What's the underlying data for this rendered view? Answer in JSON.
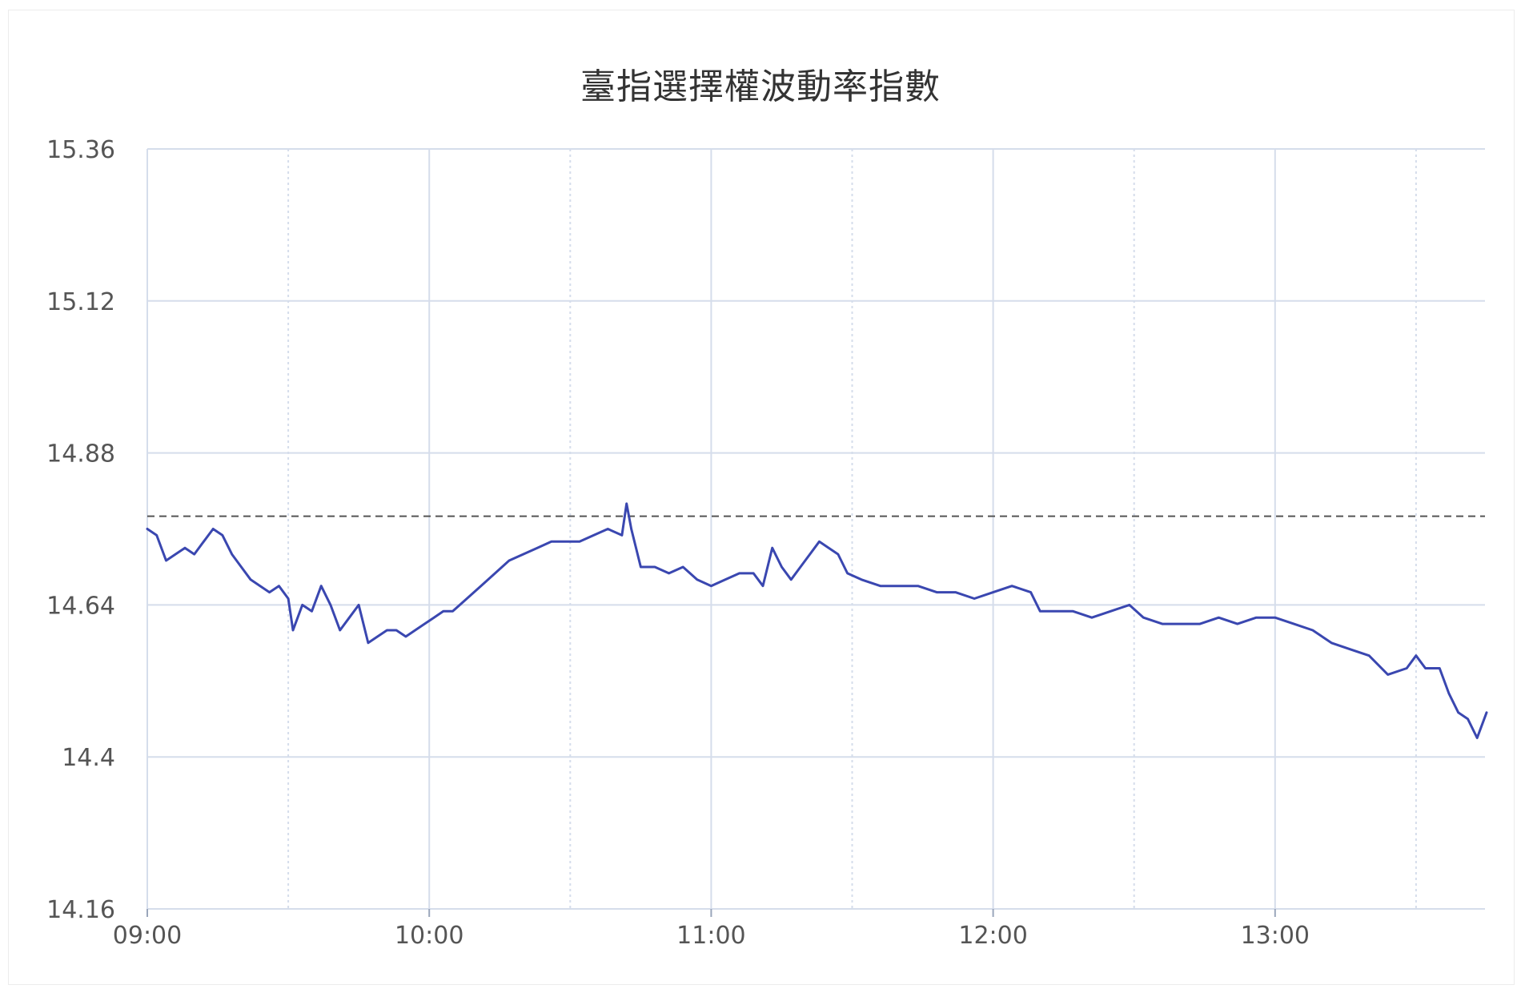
{
  "chart_data": {
    "type": "line",
    "title": "臺指選擇權波動率指數",
    "xlabel": "",
    "ylabel": "",
    "x_start": "09:00",
    "x_end": "13:45",
    "x_ticks": [
      "09:00",
      "10:00",
      "11:00",
      "12:00",
      "13:00"
    ],
    "y_ticks": [
      "14.16",
      "14.4",
      "14.64",
      "14.88",
      "15.12",
      "15.36"
    ],
    "ylim": [
      14.16,
      15.36
    ],
    "reference_line": 14.78,
    "grid": true,
    "legend": "none",
    "colors": {
      "line": "#3a47b0",
      "reference": "#555555",
      "grid": "#d5ddeb",
      "axis_text": "#555555"
    },
    "series": [
      {
        "points": [
          [
            "09:00",
            14.76
          ],
          [
            "09:02",
            14.75
          ],
          [
            "09:04",
            14.71
          ],
          [
            "09:06",
            14.72
          ],
          [
            "09:08",
            14.73
          ],
          [
            "09:10",
            14.72
          ],
          [
            "09:12",
            14.74
          ],
          [
            "09:14",
            14.76
          ],
          [
            "09:16",
            14.75
          ],
          [
            "09:18",
            14.72
          ],
          [
            "09:20",
            14.7
          ],
          [
            "09:22",
            14.68
          ],
          [
            "09:24",
            14.67
          ],
          [
            "09:26",
            14.66
          ],
          [
            "09:28",
            14.67
          ],
          [
            "09:30",
            14.65
          ],
          [
            "09:31",
            14.6
          ],
          [
            "09:33",
            14.64
          ],
          [
            "09:35",
            14.63
          ],
          [
            "09:37",
            14.67
          ],
          [
            "09:39",
            14.64
          ],
          [
            "09:41",
            14.6
          ],
          [
            "09:43",
            14.62
          ],
          [
            "09:45",
            14.64
          ],
          [
            "09:47",
            14.58
          ],
          [
            "09:49",
            14.59
          ],
          [
            "09:51",
            14.6
          ],
          [
            "09:53",
            14.6
          ],
          [
            "09:55",
            14.59
          ],
          [
            "09:57",
            14.6
          ],
          [
            "09:59",
            14.61
          ],
          [
            "10:01",
            14.62
          ],
          [
            "10:03",
            14.63
          ],
          [
            "10:05",
            14.63
          ],
          [
            "10:08",
            14.65
          ],
          [
            "10:11",
            14.67
          ],
          [
            "10:14",
            14.69
          ],
          [
            "10:17",
            14.71
          ],
          [
            "10:20",
            14.72
          ],
          [
            "10:23",
            14.73
          ],
          [
            "10:26",
            14.74
          ],
          [
            "10:29",
            14.74
          ],
          [
            "10:32",
            14.74
          ],
          [
            "10:35",
            14.75
          ],
          [
            "10:38",
            14.76
          ],
          [
            "10:41",
            14.75
          ],
          [
            "10:42",
            14.8
          ],
          [
            "10:43",
            14.76
          ],
          [
            "10:44",
            14.73
          ],
          [
            "10:45",
            14.7
          ],
          [
            "10:48",
            14.7
          ],
          [
            "10:51",
            14.69
          ],
          [
            "10:54",
            14.7
          ],
          [
            "10:57",
            14.68
          ],
          [
            "11:00",
            14.67
          ],
          [
            "11:03",
            14.68
          ],
          [
            "11:06",
            14.69
          ],
          [
            "11:09",
            14.69
          ],
          [
            "11:11",
            14.67
          ],
          [
            "11:13",
            14.73
          ],
          [
            "11:15",
            14.7
          ],
          [
            "11:17",
            14.68
          ],
          [
            "11:19",
            14.7
          ],
          [
            "11:21",
            14.72
          ],
          [
            "11:23",
            14.74
          ],
          [
            "11:25",
            14.73
          ],
          [
            "11:27",
            14.72
          ],
          [
            "11:29",
            14.69
          ],
          [
            "11:32",
            14.68
          ],
          [
            "11:36",
            14.67
          ],
          [
            "11:40",
            14.67
          ],
          [
            "11:44",
            14.67
          ],
          [
            "11:48",
            14.66
          ],
          [
            "11:52",
            14.66
          ],
          [
            "11:56",
            14.65
          ],
          [
            "12:00",
            14.66
          ],
          [
            "12:04",
            14.67
          ],
          [
            "12:08",
            14.66
          ],
          [
            "12:10",
            14.63
          ],
          [
            "12:13",
            14.63
          ],
          [
            "12:17",
            14.63
          ],
          [
            "12:21",
            14.62
          ],
          [
            "12:25",
            14.63
          ],
          [
            "12:29",
            14.64
          ],
          [
            "12:32",
            14.62
          ],
          [
            "12:36",
            14.61
          ],
          [
            "12:40",
            14.61
          ],
          [
            "12:44",
            14.61
          ],
          [
            "12:48",
            14.62
          ],
          [
            "12:52",
            14.61
          ],
          [
            "12:56",
            14.62
          ],
          [
            "13:00",
            14.62
          ],
          [
            "13:04",
            14.61
          ],
          [
            "13:08",
            14.6
          ],
          [
            "13:12",
            14.58
          ],
          [
            "13:16",
            14.57
          ],
          [
            "13:20",
            14.56
          ],
          [
            "13:24",
            14.53
          ],
          [
            "13:28",
            14.54
          ],
          [
            "13:30",
            14.56
          ],
          [
            "13:32",
            14.54
          ],
          [
            "13:35",
            14.54
          ],
          [
            "13:37",
            14.5
          ],
          [
            "13:39",
            14.47
          ],
          [
            "13:41",
            14.46
          ],
          [
            "13:43",
            14.43
          ],
          [
            "13:45",
            14.47
          ]
        ]
      }
    ]
  }
}
